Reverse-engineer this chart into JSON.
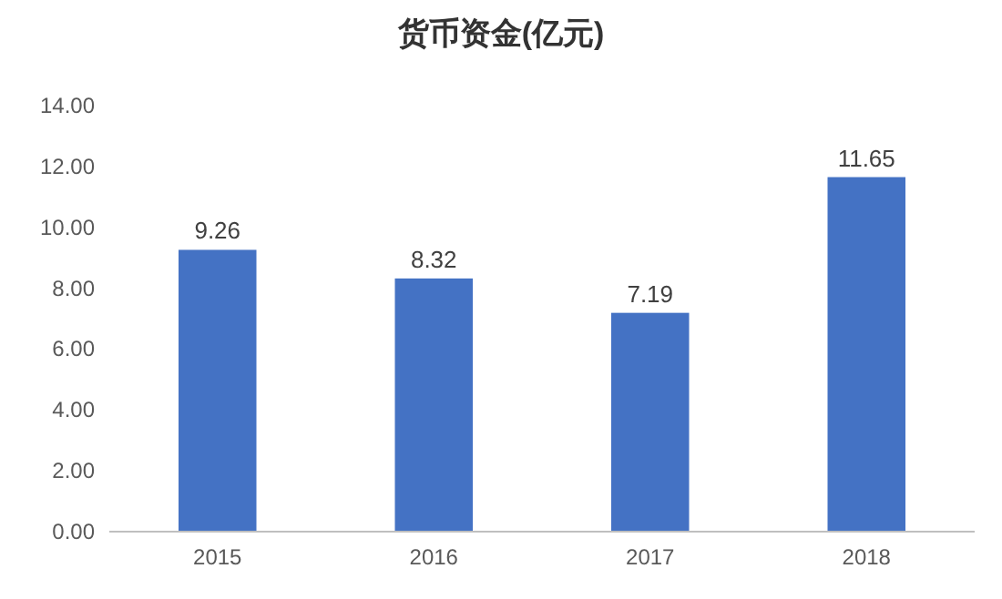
{
  "chart_data": {
    "type": "bar",
    "title": "货币资金(亿元)",
    "categories": [
      "2015",
      "2016",
      "2017",
      "2018"
    ],
    "values": [
      9.26,
      8.32,
      7.19,
      11.65
    ],
    "color": "#4472c4",
    "ylim": [
      0,
      14
    ],
    "yticks": [
      {
        "value": 0,
        "label": "0.00"
      },
      {
        "value": 2,
        "label": "2.00"
      },
      {
        "value": 4,
        "label": "4.00"
      },
      {
        "value": 6,
        "label": "6.00"
      },
      {
        "value": 8,
        "label": "8.00"
      },
      {
        "value": 10,
        "label": "10.00"
      },
      {
        "value": 12,
        "label": "12.00"
      },
      {
        "value": 14,
        "label": "14.00"
      }
    ],
    "data_labels": true,
    "grid": false
  }
}
